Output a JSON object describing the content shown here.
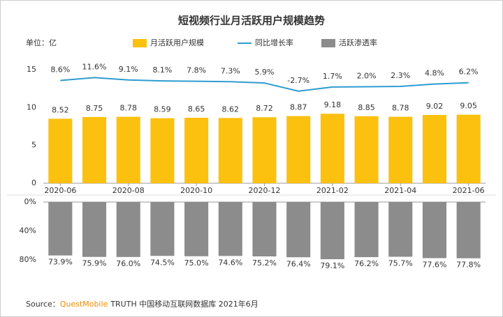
{
  "chart_data": [
    {
      "type": "bar",
      "title": "短视频行业月活跃用户规模趋势",
      "y_label": "单位：亿",
      "categories": [
        "2020-06",
        null,
        "2020-08",
        null,
        "2020-10",
        null,
        "2020-12",
        null,
        "2021-02",
        null,
        "2021-04",
        null,
        "2021-06"
      ],
      "ylim": [
        0,
        15
      ],
      "yticks": [
        0,
        5,
        10,
        15
      ],
      "y2lim": [
        -100,
        20
      ],
      "series": [
        {
          "name": "月活跃用户规模",
          "type": "bar",
          "color": "#fcc10f",
          "values": [
            8.52,
            8.75,
            8.78,
            8.59,
            8.65,
            8.62,
            8.72,
            8.87,
            9.18,
            8.85,
            8.78,
            9.02,
            9.05
          ]
        },
        {
          "name": "同比增长率",
          "type": "line",
          "axis": "y2",
          "color": "#2e9ccf",
          "values": [
            8.6,
            11.6,
            9.1,
            8.1,
            7.8,
            7.3,
            5.9,
            -2.7,
            1.7,
            2.0,
            2.3,
            4.8,
            6.2
          ],
          "value_labels": [
            "8.6%",
            "11.6%",
            "9.1%",
            "8.1%",
            "7.8%",
            "7.3%",
            "5.9%",
            "-2.7%",
            "1.7%",
            "2.0%",
            "2.3%",
            "4.8%",
            "6.2%"
          ]
        }
      ],
      "source_prefix": "Source：",
      "source_brand": "QuestMobile",
      "source_text": "TRUTH 中国移动互联网数据库 2021年6月"
    },
    {
      "type": "bar",
      "inverted": true,
      "ylim": [
        0,
        80
      ],
      "yticks": [
        {
          "value": 0,
          "label": "0%"
        },
        {
          "value": 40,
          "label": "40%"
        },
        {
          "value": 80,
          "label": "80%"
        }
      ],
      "series": [
        {
          "name": "活跃渗透率",
          "type": "bar",
          "color": "#8c8c8c",
          "values": [
            73.9,
            75.9,
            76.0,
            74.5,
            75.0,
            74.6,
            75.2,
            76.4,
            79.1,
            76.2,
            75.7,
            77.6,
            77.8
          ],
          "value_labels": [
            "73.9%",
            "75.9%",
            "76.0%",
            "74.5%",
            "75.0%",
            "74.6%",
            "75.2%",
            "76.4%",
            "79.1%",
            "76.2%",
            "75.7%",
            "77.6%",
            "77.8%"
          ]
        }
      ]
    }
  ]
}
